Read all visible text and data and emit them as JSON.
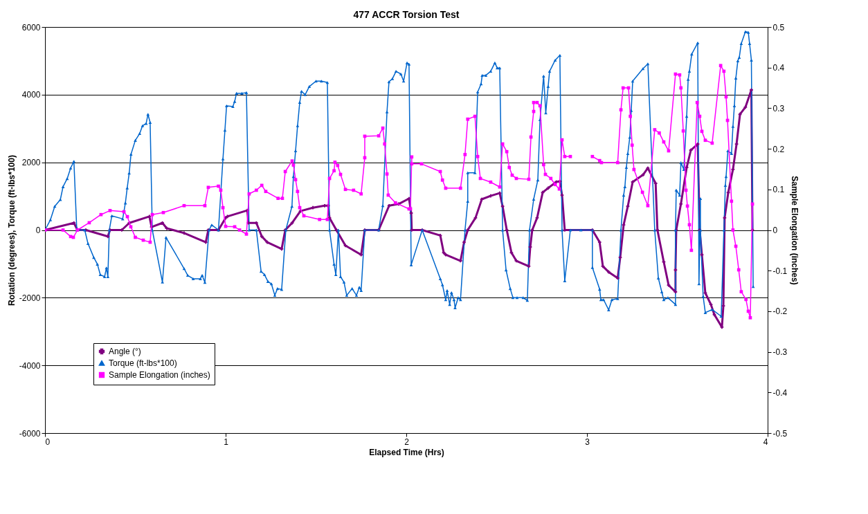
{
  "chart_data": {
    "type": "line",
    "title": "477 ACCR Torsion Test",
    "xlabel": "Elapsed Time (Hrs)",
    "ylabel": "Rotation (degrees), Torque (ft-lbs*100)",
    "y2label": "Sample Elongation (inches)",
    "xlim": [
      0,
      4
    ],
    "xticks": [
      0,
      1,
      2,
      3,
      4
    ],
    "ylim": [
      -6000,
      6000
    ],
    "yticks": [
      -6000,
      -4000,
      -2000,
      0,
      2000,
      4000,
      6000
    ],
    "y2lim": [
      -0.5,
      0.5
    ],
    "y2ticks": [
      -0.5,
      -0.4,
      -0.3,
      -0.2,
      -0.1,
      0,
      0.1,
      0.2,
      0.3,
      0.4,
      0.5
    ],
    "grid": "y",
    "legend": "bottom left",
    "series": [
      {
        "name": "Angle (°)",
        "color": "#800080",
        "marker": "cross",
        "x": [
          0,
          0.16,
          0.18,
          0.226,
          0.348,
          0.36,
          0.425,
          0.467,
          0.578,
          0.59,
          0.65,
          0.674,
          0.77,
          0.89,
          0.904,
          0.96,
          1.0,
          1.01,
          1.12,
          1.126,
          1.17,
          1.2,
          1.23,
          1.31,
          1.33,
          1.368,
          1.414,
          1.483,
          1.548,
          1.567,
          1.575,
          1.613,
          1.663,
          1.75,
          1.77,
          1.847,
          1.905,
          1.958,
          2.015,
          2.027,
          2.03,
          2.088,
          2.188,
          2.207,
          2.218,
          2.3,
          2.32,
          2.34,
          2.383,
          2.418,
          2.467,
          2.517,
          2.533,
          2.556,
          2.582,
          2.609,
          2.678,
          2.686,
          2.697,
          2.724,
          2.755,
          2.785,
          2.83,
          2.85,
          2.862,
          2.877,
          3.03,
          3.07,
          3.088,
          3.12,
          3.17,
          3.184,
          3.203,
          3.226,
          3.253,
          3.31,
          3.337,
          3.38,
          3.39,
          3.425,
          3.452,
          3.49,
          3.49,
          3.494,
          3.52,
          3.552,
          3.575,
          3.613,
          3.624,
          3.636,
          3.655,
          3.686,
          3.705,
          3.747,
          3.755,
          3.762,
          3.782,
          3.808,
          3.828,
          3.847,
          3.877,
          3.91,
          3.916
        ],
        "values": [
          0,
          210,
          0,
          0,
          -190,
          0,
          0,
          210,
          400,
          90,
          210,
          50,
          -90,
          -360,
          0,
          0,
          360,
          400,
          580,
          210,
          210,
          -190,
          -360,
          -560,
          0,
          210,
          560,
          660,
          720,
          720,
          360,
          0,
          -460,
          -730,
          0,
          0,
          720,
          770,
          930,
          500,
          0,
          0,
          -160,
          -670,
          -730,
          -910,
          -360,
          0,
          360,
          910,
          1010,
          1090,
          700,
          0,
          -670,
          -910,
          -1070,
          -500,
          0,
          360,
          1110,
          1240,
          1420,
          1440,
          1030,
          0,
          0,
          -360,
          -1070,
          -1240,
          -1420,
          -810,
          150,
          700,
          1420,
          1630,
          1830,
          1380,
          0,
          -940,
          -1630,
          -1830,
          -1180,
          0,
          770,
          1850,
          2360,
          2540,
          0,
          -730,
          -1860,
          -2200,
          -2500,
          -2870,
          -2240,
          360,
          1110,
          1790,
          2540,
          3420,
          3630,
          4140,
          0
        ]
      },
      {
        "name": "Torque (ft-lbs*100)",
        "color": "#0066cc",
        "marker": "triangle",
        "x": [
          0,
          0.03,
          0.054,
          0.085,
          0.1,
          0.123,
          0.142,
          0.16,
          0.176,
          0.22,
          0.238,
          0.27,
          0.29,
          0.306,
          0.33,
          0.34,
          0.348,
          0.356,
          0.37,
          0.43,
          0.445,
          0.455,
          0.466,
          0.476,
          0.5,
          0.524,
          0.54,
          0.56,
          0.57,
          0.582,
          0.594,
          0.65,
          0.67,
          0.77,
          0.79,
          0.82,
          0.86,
          0.87,
          0.885,
          0.908,
          0.923,
          0.96,
          0.985,
          0.996,
          1.005,
          1.04,
          1.05,
          1.06,
          1.09,
          1.115,
          1.13,
          1.17,
          1.196,
          1.215,
          1.234,
          1.253,
          1.272,
          1.287,
          1.31,
          1.333,
          1.367,
          1.375,
          1.387,
          1.398,
          1.41,
          1.42,
          1.44,
          1.463,
          1.5,
          1.53,
          1.563,
          1.575,
          1.6,
          1.61,
          1.624,
          1.636,
          1.655,
          1.67,
          1.7,
          1.724,
          1.74,
          1.75,
          1.77,
          1.847,
          1.87,
          1.893,
          1.904,
          1.923,
          1.943,
          1.97,
          1.985,
          2.004,
          2.015,
          2.027,
          2.088,
          2.188,
          2.2,
          2.218,
          2.226,
          2.24,
          2.25,
          2.264,
          2.27,
          2.287,
          2.3,
          2.325,
          2.34,
          2.34,
          2.38,
          2.395,
          2.414,
          2.42,
          2.44,
          2.467,
          2.49,
          2.503,
          2.517,
          2.533,
          2.552,
          2.575,
          2.59,
          2.613,
          2.647,
          2.67,
          2.682,
          2.705,
          2.728,
          2.74,
          2.76,
          2.772,
          2.785,
          2.793,
          2.824,
          2.85,
          2.862,
          2.877,
          2.908,
          2.966,
          3.03,
          3.03,
          3.07,
          3.077,
          3.092,
          3.12,
          3.138,
          3.17,
          3.188,
          3.203,
          3.21,
          3.218,
          3.226,
          3.237,
          3.245,
          3.253,
          3.31,
          3.337,
          3.375,
          3.395,
          3.414,
          3.425,
          3.448,
          3.49,
          3.49,
          3.494,
          3.513,
          3.52,
          3.536,
          3.552,
          3.56,
          3.567,
          3.58,
          3.613,
          3.62,
          3.628,
          3.628,
          3.643,
          3.655,
          3.693,
          3.743,
          3.758,
          3.766,
          3.77,
          3.78,
          3.8,
          3.808,
          3.816,
          3.824,
          3.835,
          3.843,
          3.854,
          3.877,
          3.893,
          3.9,
          3.91,
          3.92
        ],
        "values": [
          0,
          300,
          700,
          900,
          1280,
          1520,
          1830,
          2030,
          0,
          0,
          -400,
          -810,
          -1010,
          -1320,
          -1380,
          -1120,
          -1380,
          0,
          420,
          330,
          800,
          1240,
          1680,
          2240,
          2650,
          2850,
          3080,
          3150,
          3420,
          3180,
          0,
          -1540,
          -220,
          -1140,
          -1340,
          -1440,
          -1440,
          -1340,
          -1550,
          0,
          150,
          0,
          2100,
          2950,
          3670,
          3650,
          3800,
          4040,
          4040,
          4060,
          0,
          0,
          -1220,
          -1320,
          -1520,
          -1590,
          -1930,
          -1730,
          -1760,
          0,
          700,
          1580,
          2340,
          3080,
          3770,
          4100,
          4000,
          4240,
          4400,
          4400,
          4360,
          0,
          -1010,
          -1320,
          0,
          -1380,
          -1540,
          -1930,
          -1730,
          -1930,
          -1690,
          -1790,
          0,
          0,
          720,
          3490,
          4380,
          4470,
          4690,
          4610,
          4400,
          4940,
          4900,
          -1030,
          0,
          -1440,
          -1620,
          -2060,
          -1790,
          -2200,
          -1850,
          -2060,
          -2300,
          -2000,
          -2060,
          0,
          850,
          1690,
          1690,
          4080,
          4320,
          4570,
          4570,
          4690,
          4940,
          4790,
          4790,
          0,
          -1180,
          -1730,
          -2000,
          -2000,
          -2000,
          -2080,
          0,
          910,
          1480,
          3260,
          4550,
          3460,
          4240,
          4690,
          5020,
          5160,
          0,
          -1500,
          0,
          0,
          0,
          -1110,
          -1750,
          -2060,
          -2060,
          -2360,
          -2060,
          -2030,
          0,
          1030,
          1280,
          1850,
          2260,
          2740,
          3530,
          4400,
          4770,
          4910,
          0,
          -1420,
          -1830,
          -2060,
          -2000,
          -2200,
          0,
          1180,
          1030,
          1990,
          1790,
          3360,
          4450,
          4690,
          5200,
          5530,
          -1590,
          930,
          0,
          -1960,
          -2440,
          -2350,
          -2550,
          0,
          1320,
          1580,
          2340,
          2260,
          3060,
          3670,
          4490,
          5000,
          5100,
          5510,
          5860,
          5840,
          5510,
          5020,
          -1670
        ]
      },
      {
        "name": "Sample Elongation (inches)",
        "color": "#ff00ff",
        "marker": "square",
        "axis": "y2",
        "x": [
          0,
          0.1,
          0.142,
          0.157,
          0.18,
          0.245,
          0.31,
          0.36,
          0.437,
          0.456,
          0.475,
          0.5,
          0.544,
          0.582,
          0.594,
          0.655,
          0.77,
          0.885,
          0.904,
          0.96,
          0.973,
          0.985,
          1.0,
          1.05,
          1.077,
          1.115,
          1.13,
          1.17,
          1.2,
          1.222,
          1.29,
          1.314,
          1.33,
          1.368,
          1.375,
          1.387,
          1.398,
          1.41,
          1.433,
          1.52,
          1.563,
          1.575,
          1.6,
          1.605,
          1.62,
          1.636,
          1.663,
          1.708,
          1.75,
          1.77,
          1.77,
          1.847,
          1.87,
          1.88,
          1.893,
          1.9,
          1.94,
          2.015,
          2.023,
          2.03,
          2.03,
          2.084,
          2.188,
          2.2,
          2.218,
          2.3,
          2.325,
          2.34,
          2.38,
          2.395,
          2.41,
          2.467,
          2.517,
          2.533,
          2.556,
          2.57,
          2.586,
          2.609,
          2.678,
          2.69,
          2.705,
          2.705,
          2.724,
          2.74,
          2.76,
          2.77,
          2.8,
          2.824,
          2.847,
          2.862,
          2.877,
          2.908,
          2.97,
          3.03,
          3.07,
          3.08,
          3.17,
          3.188,
          3.2,
          3.23,
          3.24,
          3.25,
          3.26,
          3.307,
          3.337,
          3.375,
          3.4,
          3.425,
          3.452,
          3.49,
          3.513,
          3.52,
          3.533,
          3.548,
          3.556,
          3.567,
          3.578,
          3.61,
          3.624,
          3.636,
          3.655,
          3.693,
          3.74,
          3.758,
          3.77,
          3.778,
          3.8,
          3.808,
          3.824,
          3.84,
          3.854,
          3.88,
          3.893,
          3.904,
          3.916
        ],
        "values": [
          0,
          0,
          -0.016,
          -0.018,
          0,
          0.018,
          0.038,
          0.048,
          0.045,
          0.033,
          0.008,
          -0.018,
          -0.025,
          -0.03,
          0.038,
          0.043,
          0.06,
          0.06,
          0.105,
          0.108,
          0.098,
          0.055,
          0.009,
          0.008,
          0,
          -0.01,
          0.089,
          0.098,
          0.11,
          0.095,
          0.078,
          0.078,
          0.144,
          0.17,
          0.16,
          0.124,
          0.095,
          0.055,
          0.035,
          0.026,
          0.026,
          0.127,
          0.146,
          0.167,
          0.159,
          0.137,
          0.1,
          0.098,
          0.089,
          0.178,
          0.231,
          0.232,
          0.251,
          0.212,
          0.138,
          0.086,
          0.067,
          0.052,
          0.052,
          0.18,
          0.163,
          0.163,
          0.144,
          0.123,
          0.103,
          0.103,
          0.186,
          0.273,
          0.28,
          0.181,
          0.127,
          0.118,
          0.106,
          0.212,
          0.193,
          0.154,
          0.135,
          0.127,
          0.125,
          0.229,
          0.292,
          0.314,
          0.314,
          0.306,
          0.161,
          0.137,
          0.127,
          0.112,
          0.101,
          0.222,
          0.181,
          0.181,
          null,
          0.181,
          0.171,
          0.166,
          0.166,
          0.296,
          0.35,
          0.35,
          0.28,
          0.209,
          0.149,
          0.093,
          0.06,
          0.247,
          0.239,
          0.217,
          0.195,
          0.384,
          0.382,
          0.35,
          0.244,
          0.098,
          0.059,
          0.013,
          -0.05,
          0.314,
          0.28,
          0.243,
          0.221,
          0.214,
          0.405,
          0.391,
          0.328,
          0.27,
          0.071,
          0,
          -0.04,
          -0.098,
          -0.152,
          -0.171,
          -0.2,
          -0.216,
          0.064
        ]
      }
    ]
  }
}
